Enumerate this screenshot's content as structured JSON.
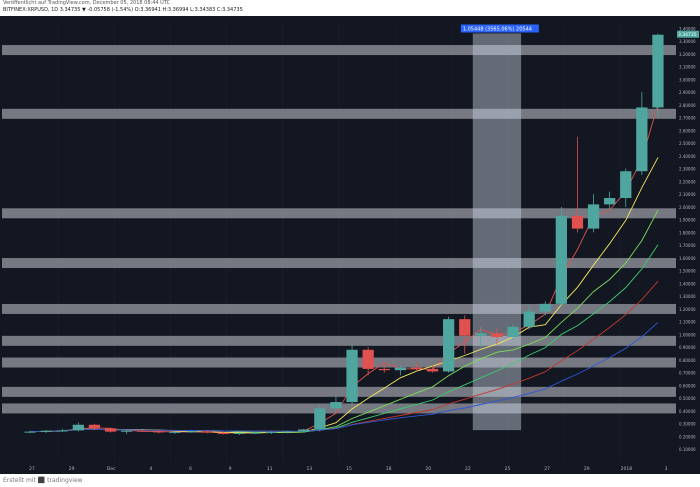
{
  "header": {
    "published_line": "Veröffentlicht auf TradingView.com, December 05, 2018 08:44 UTC",
    "symbol_line": "BITFINEX:XRPUSD, 1D 3.34735 ▼ -0.05758 (-1.54%) O:3.36941 H:3.36994 L:3.34383 C:3.34735"
  },
  "footer": {
    "credit": "Erstellt mit ⬛ tradingview"
  },
  "measure_label": "1.05448 (3565.06%) 20544",
  "last_price_label": "3.34735",
  "chart_data": {
    "type": "candlestick",
    "ylim": [
      0,
      3.45
    ],
    "y_ticks": [
      "3.40000",
      "3.30000",
      "3.20000",
      "3.10000",
      "3.00000",
      "2.90000",
      "2.80000",
      "2.70000",
      "2.60000",
      "2.50000",
      "2.40000",
      "2.30000",
      "2.20000",
      "2.10000",
      "2.00000",
      "1.90000",
      "1.80000",
      "1.70000",
      "1.60000",
      "1.50000",
      "1.40000",
      "1.30000",
      "1.20000",
      "1.10000",
      "1.00000",
      "0.90000",
      "0.80000",
      "0.70000",
      "0.60000",
      "0.50000",
      "0.40000",
      "0.30000",
      "0.20000",
      "0.10000"
    ],
    "x_ticks": [
      "27",
      "29",
      "Dec",
      "4",
      "6",
      "9",
      "11",
      "13",
      "15",
      "18",
      "20",
      "22",
      "25",
      "27",
      "29",
      "2018",
      "3"
    ],
    "candles": [
      {
        "x": 0,
        "o": 0.235,
        "h": 0.245,
        "l": 0.225,
        "c": 0.238
      },
      {
        "x": 1,
        "o": 0.238,
        "h": 0.25,
        "l": 0.228,
        "c": 0.243
      },
      {
        "x": 2,
        "o": 0.243,
        "h": 0.26,
        "l": 0.235,
        "c": 0.248
      },
      {
        "x": 3,
        "o": 0.248,
        "h": 0.31,
        "l": 0.24,
        "c": 0.292
      },
      {
        "x": 4,
        "o": 0.292,
        "h": 0.3,
        "l": 0.25,
        "c": 0.262
      },
      {
        "x": 5,
        "o": 0.262,
        "h": 0.27,
        "l": 0.23,
        "c": 0.238
      },
      {
        "x": 6,
        "o": 0.238,
        "h": 0.25,
        "l": 0.22,
        "c": 0.245
      },
      {
        "x": 7,
        "o": 0.245,
        "h": 0.255,
        "l": 0.235,
        "c": 0.24
      },
      {
        "x": 8,
        "o": 0.24,
        "h": 0.25,
        "l": 0.225,
        "c": 0.232
      },
      {
        "x": 9,
        "o": 0.232,
        "h": 0.242,
        "l": 0.22,
        "c": 0.236
      },
      {
        "x": 10,
        "o": 0.236,
        "h": 0.245,
        "l": 0.228,
        "c": 0.24
      },
      {
        "x": 11,
        "o": 0.24,
        "h": 0.248,
        "l": 0.225,
        "c": 0.23
      },
      {
        "x": 12,
        "o": 0.23,
        "h": 0.24,
        "l": 0.215,
        "c": 0.22
      },
      {
        "x": 13,
        "o": 0.22,
        "h": 0.232,
        "l": 0.212,
        "c": 0.228
      },
      {
        "x": 14,
        "o": 0.228,
        "h": 0.238,
        "l": 0.22,
        "c": 0.23
      },
      {
        "x": 15,
        "o": 0.23,
        "h": 0.24,
        "l": 0.22,
        "c": 0.235
      },
      {
        "x": 16,
        "o": 0.235,
        "h": 0.245,
        "l": 0.225,
        "c": 0.24
      },
      {
        "x": 17,
        "o": 0.24,
        "h": 0.26,
        "l": 0.235,
        "c": 0.255
      },
      {
        "x": 18,
        "o": 0.255,
        "h": 0.45,
        "l": 0.24,
        "c": 0.42
      },
      {
        "x": 19,
        "o": 0.42,
        "h": 0.52,
        "l": 0.4,
        "c": 0.47
      },
      {
        "x": 20,
        "o": 0.47,
        "h": 0.92,
        "l": 0.44,
        "c": 0.88
      },
      {
        "x": 21,
        "o": 0.88,
        "h": 0.9,
        "l": 0.68,
        "c": 0.73
      },
      {
        "x": 22,
        "o": 0.73,
        "h": 0.76,
        "l": 0.7,
        "c": 0.72
      },
      {
        "x": 23,
        "o": 0.72,
        "h": 0.76,
        "l": 0.68,
        "c": 0.74
      },
      {
        "x": 24,
        "o": 0.74,
        "h": 0.78,
        "l": 0.71,
        "c": 0.73
      },
      {
        "x": 25,
        "o": 0.73,
        "h": 0.76,
        "l": 0.7,
        "c": 0.71
      },
      {
        "x": 26,
        "o": 0.71,
        "h": 1.14,
        "l": 0.7,
        "c": 1.12
      },
      {
        "x": 27,
        "o": 1.12,
        "h": 1.15,
        "l": 0.85,
        "c": 0.99
      },
      {
        "x": 28,
        "o": 0.99,
        "h": 1.06,
        "l": 0.9,
        "c": 1.01
      },
      {
        "x": 29,
        "o": 1.01,
        "h": 1.05,
        "l": 0.92,
        "c": 0.98
      },
      {
        "x": 30,
        "o": 0.98,
        "h": 1.08,
        "l": 0.96,
        "c": 1.06
      },
      {
        "x": 31,
        "o": 1.06,
        "h": 1.23,
        "l": 1.04,
        "c": 1.18
      },
      {
        "x": 32,
        "o": 1.18,
        "h": 1.26,
        "l": 1.15,
        "c": 1.24
      },
      {
        "x": 33,
        "o": 1.24,
        "h": 2.0,
        "l": 1.22,
        "c": 1.93
      },
      {
        "x": 34,
        "o": 1.93,
        "h": 2.55,
        "l": 1.8,
        "c": 1.83
      },
      {
        "x": 35,
        "o": 1.83,
        "h": 2.1,
        "l": 1.8,
        "c": 2.02
      },
      {
        "x": 36,
        "o": 2.02,
        "h": 2.12,
        "l": 1.98,
        "c": 2.07
      },
      {
        "x": 37,
        "o": 2.07,
        "h": 2.3,
        "l": 2.0,
        "c": 2.28
      },
      {
        "x": 38,
        "o": 2.28,
        "h": 2.9,
        "l": 2.25,
        "c": 2.78
      },
      {
        "x": 39,
        "o": 2.78,
        "h": 3.36,
        "l": 2.7,
        "c": 3.35
      }
    ],
    "support_zones": [
      3.23,
      2.73,
      1.95,
      1.56,
      1.2,
      0.95,
      0.78,
      0.55,
      0.42
    ],
    "measure": {
      "from_x": 28,
      "to_x": 30,
      "label": "1.05448 (3565.06%) 20544"
    },
    "colors": {
      "up": "#4fa69e",
      "down": "#e0524f",
      "zone": "rgba(200,200,210,0.55)",
      "measure": "rgba(200,210,225,0.45)"
    }
  }
}
